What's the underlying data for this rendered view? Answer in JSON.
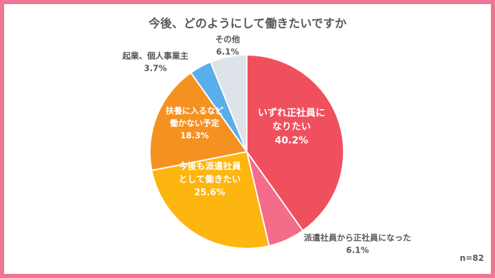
{
  "chart_data": {
    "type": "pie",
    "title": "今後、どのようにして働きたいですか",
    "note": "n=82",
    "slices": [
      {
        "lines": [
          "いずれ正社員に",
          "なりたい"
        ],
        "pct": "40.2%",
        "value": 40.2,
        "color": "#f0505e",
        "label_color": "#ffffff"
      },
      {
        "lines": [
          "派遣社員から正社員になった"
        ],
        "pct": "6.1%",
        "value": 6.1,
        "color": "#f56b8a",
        "label_color": "#595959"
      },
      {
        "lines": [
          "今後も派遣社員",
          "として働きたい"
        ],
        "pct": "25.6%",
        "value": 25.6,
        "color": "#fdb50f",
        "label_color": "#ffffff"
      },
      {
        "lines": [
          "扶養に入るなど",
          "働かない予定"
        ],
        "pct": "18.3%",
        "value": 18.3,
        "color": "#f59120",
        "label_color": "#ffffff"
      },
      {
        "lines": [
          "起業、個人事業主"
        ],
        "pct": "3.7%",
        "value": 3.7,
        "color": "#5aaeea",
        "label_color": "#595959"
      },
      {
        "lines": [
          "その他"
        ],
        "pct": "6.1%",
        "value": 6.1,
        "color": "#dde3e8",
        "label_color": "#595959"
      }
    ]
  }
}
